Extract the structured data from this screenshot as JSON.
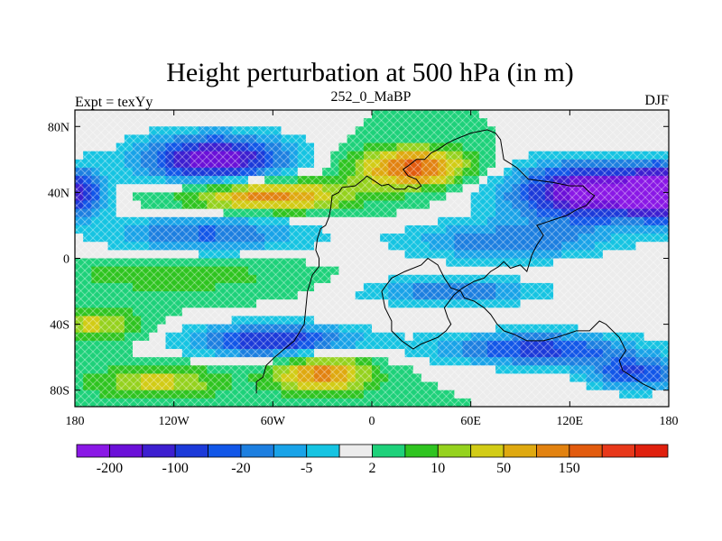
{
  "chart_data": {
    "type": "heatmap",
    "title": "Height perturbation at 500 hPa (in m)",
    "left_label": "Expt = texYy",
    "center_label": "252_0_MaBP",
    "right_label": "DJF",
    "xlim": [
      -180,
      180
    ],
    "ylim": [
      -90,
      90
    ],
    "x_ticks": [
      {
        "value": -180,
        "label": "180"
      },
      {
        "value": -120,
        "label": "120W"
      },
      {
        "value": -60,
        "label": "60W"
      },
      {
        "value": 0,
        "label": "0"
      },
      {
        "value": 60,
        "label": "60E"
      },
      {
        "value": 120,
        "label": "120E"
      },
      {
        "value": 180,
        "label": "180"
      }
    ],
    "y_ticks": [
      {
        "value": 80,
        "label": "80N"
      },
      {
        "value": 40,
        "label": "40N"
      },
      {
        "value": 0,
        "label": "0"
      },
      {
        "value": -40,
        "label": "40S"
      },
      {
        "value": -80,
        "label": "80S"
      }
    ],
    "colorbar": {
      "colors": [
        "#8a18e6",
        "#6b10d8",
        "#3d1fd0",
        "#1c3ad9",
        "#1257e8",
        "#1d7fe0",
        "#19a3e8",
        "#16c4e2",
        "#ececec",
        "#1ed17a",
        "#2fc420",
        "#95d21e",
        "#d2cc16",
        "#dfa910",
        "#e28210",
        "#e25b0e",
        "#e8381a",
        "#e0200e"
      ],
      "ticks": [
        {
          "boundary": 1,
          "label": "-200"
        },
        {
          "boundary": 3,
          "label": "-100"
        },
        {
          "boundary": 5,
          "label": "-20"
        },
        {
          "boundary": 7,
          "label": "-5"
        },
        {
          "boundary": 9,
          "label": "2"
        },
        {
          "boundary": 11,
          "label": "10"
        },
        {
          "boundary": 13,
          "label": "50"
        },
        {
          "boundary": 15,
          "label": "150"
        }
      ]
    },
    "field_features": [
      {
        "lon": -95,
        "lat": 60,
        "amplitude": -9.5,
        "lon_width": 45,
        "lat_width": 15
      },
      {
        "lon": 140,
        "lat": 40,
        "amplitude": -11,
        "lon_width": 55,
        "lat_width": 18
      },
      {
        "lon": -180,
        "lat": 40,
        "amplitude": -8,
        "lon_width": 18,
        "lat_width": 15
      },
      {
        "lon": 180,
        "lat": 40,
        "amplitude": -8,
        "lon_width": 18,
        "lat_width": 15
      },
      {
        "lon": -65,
        "lat": 38,
        "amplitude": 7,
        "lon_width": 50,
        "lat_width": 10
      },
      {
        "lon": 25,
        "lat": 55,
        "amplitude": 7.5,
        "lon_width": 35,
        "lat_width": 12
      },
      {
        "lon": -100,
        "lat": 15,
        "amplitude": -5,
        "lon_width": 60,
        "lat_width": 12
      },
      {
        "lon": 80,
        "lat": 10,
        "amplitude": -4.5,
        "lon_width": 60,
        "lat_width": 12
      },
      {
        "lon": -120,
        "lat": -10,
        "amplitude": 2.5,
        "lon_width": 60,
        "lat_width": 10
      },
      {
        "lon": 50,
        "lat": -20,
        "amplitude": -5,
        "lon_width": 50,
        "lat_width": 8
      },
      {
        "lon": -60,
        "lat": -50,
        "amplitude": -7.5,
        "lon_width": 50,
        "lat_width": 10
      },
      {
        "lon": 100,
        "lat": -55,
        "amplitude": -6.5,
        "lon_width": 60,
        "lat_width": 10
      },
      {
        "lon": -30,
        "lat": -70,
        "amplitude": 6.5,
        "lon_width": 30,
        "lat_width": 12
      },
      {
        "lon": -130,
        "lat": -75,
        "amplitude": 4,
        "lon_width": 40,
        "lat_width": 10
      },
      {
        "lon": 160,
        "lat": -70,
        "amplitude": -6,
        "lon_width": 30,
        "lat_width": 10
      },
      {
        "lon": -170,
        "lat": -40,
        "amplitude": 4,
        "lon_width": 30,
        "lat_width": 10
      }
    ],
    "continent_outline": [
      [
        [
          -70,
          -82
        ],
        [
          -70,
          -75
        ],
        [
          -66,
          -72
        ],
        [
          -64,
          -65
        ],
        [
          -59,
          -60
        ],
        [
          -53,
          -55
        ],
        [
          -47,
          -50
        ],
        [
          -44,
          -45
        ],
        [
          -41,
          -40
        ],
        [
          -40,
          -30
        ],
        [
          -39,
          -20
        ],
        [
          -36,
          -10
        ],
        [
          -32,
          -5
        ],
        [
          -32,
          0
        ],
        [
          -34,
          5
        ],
        [
          -33,
          12
        ],
        [
          -31,
          18
        ],
        [
          -28,
          20
        ],
        [
          -26,
          25
        ],
        [
          -25,
          30
        ],
        [
          -24,
          38
        ],
        [
          -20,
          40
        ],
        [
          -18,
          43
        ],
        [
          -10,
          44
        ],
        [
          -5,
          48
        ],
        [
          -3,
          50
        ],
        [
          0,
          48
        ],
        [
          3,
          46
        ],
        [
          6,
          44
        ],
        [
          10,
          45
        ],
        [
          14,
          42
        ],
        [
          20,
          42
        ],
        [
          22,
          44
        ],
        [
          27,
          42
        ],
        [
          30,
          44
        ],
        [
          27,
          48
        ],
        [
          22,
          50
        ],
        [
          19,
          54
        ],
        [
          22,
          56
        ],
        [
          27,
          60
        ],
        [
          32,
          60
        ],
        [
          36,
          64
        ],
        [
          40,
          66
        ],
        [
          46,
          70
        ],
        [
          50,
          72
        ],
        [
          60,
          76
        ],
        [
          70,
          78
        ],
        [
          75,
          76
        ],
        [
          78,
          72
        ],
        [
          80,
          60
        ],
        [
          88,
          55
        ],
        [
          95,
          48
        ],
        [
          110,
          46
        ],
        [
          120,
          44
        ],
        [
          128,
          44
        ],
        [
          132,
          40
        ],
        [
          135,
          38
        ],
        [
          130,
          32
        ],
        [
          125,
          30
        ],
        [
          118,
          26
        ],
        [
          112,
          24
        ],
        [
          106,
          22
        ],
        [
          100,
          20
        ],
        [
          104,
          14
        ],
        [
          100,
          8
        ],
        [
          97,
          2
        ],
        [
          94,
          -8
        ],
        [
          90,
          -4
        ],
        [
          84,
          -6
        ],
        [
          80,
          -2
        ],
        [
          77,
          -5
        ],
        [
          72,
          -8
        ],
        [
          68,
          -12
        ],
        [
          62,
          -14
        ],
        [
          55,
          -18
        ],
        [
          50,
          -22
        ],
        [
          44,
          -30
        ],
        [
          46,
          -36
        ],
        [
          48,
          -40
        ],
        [
          45,
          -44
        ],
        [
          40,
          -48
        ],
        [
          30,
          -52
        ],
        [
          25,
          -55
        ],
        [
          18,
          -50
        ],
        [
          12,
          -44
        ],
        [
          12,
          -38
        ],
        [
          8,
          -30
        ],
        [
          6,
          -20
        ],
        [
          12,
          -12
        ],
        [
          20,
          -8
        ],
        [
          30,
          -4
        ],
        [
          34,
          0
        ],
        [
          40,
          -4
        ],
        [
          44,
          -12
        ],
        [
          48,
          -18
        ],
        [
          54,
          -20
        ],
        [
          56,
          -24
        ],
        [
          62,
          -26
        ],
        [
          68,
          -30
        ],
        [
          72,
          -34
        ],
        [
          76,
          -40
        ],
        [
          80,
          -44
        ],
        [
          86,
          -46
        ],
        [
          94,
          -50
        ],
        [
          104,
          -50
        ],
        [
          112,
          -48
        ],
        [
          118,
          -46
        ],
        [
          124,
          -44
        ],
        [
          132,
          -44
        ],
        [
          138,
          -38
        ],
        [
          142,
          -40
        ],
        [
          150,
          -48
        ],
        [
          154,
          -56
        ],
        [
          150,
          -62
        ],
        [
          152,
          -68
        ],
        [
          158,
          -72
        ],
        [
          164,
          -76
        ],
        [
          172,
          -80
        ]
      ]
    ]
  }
}
